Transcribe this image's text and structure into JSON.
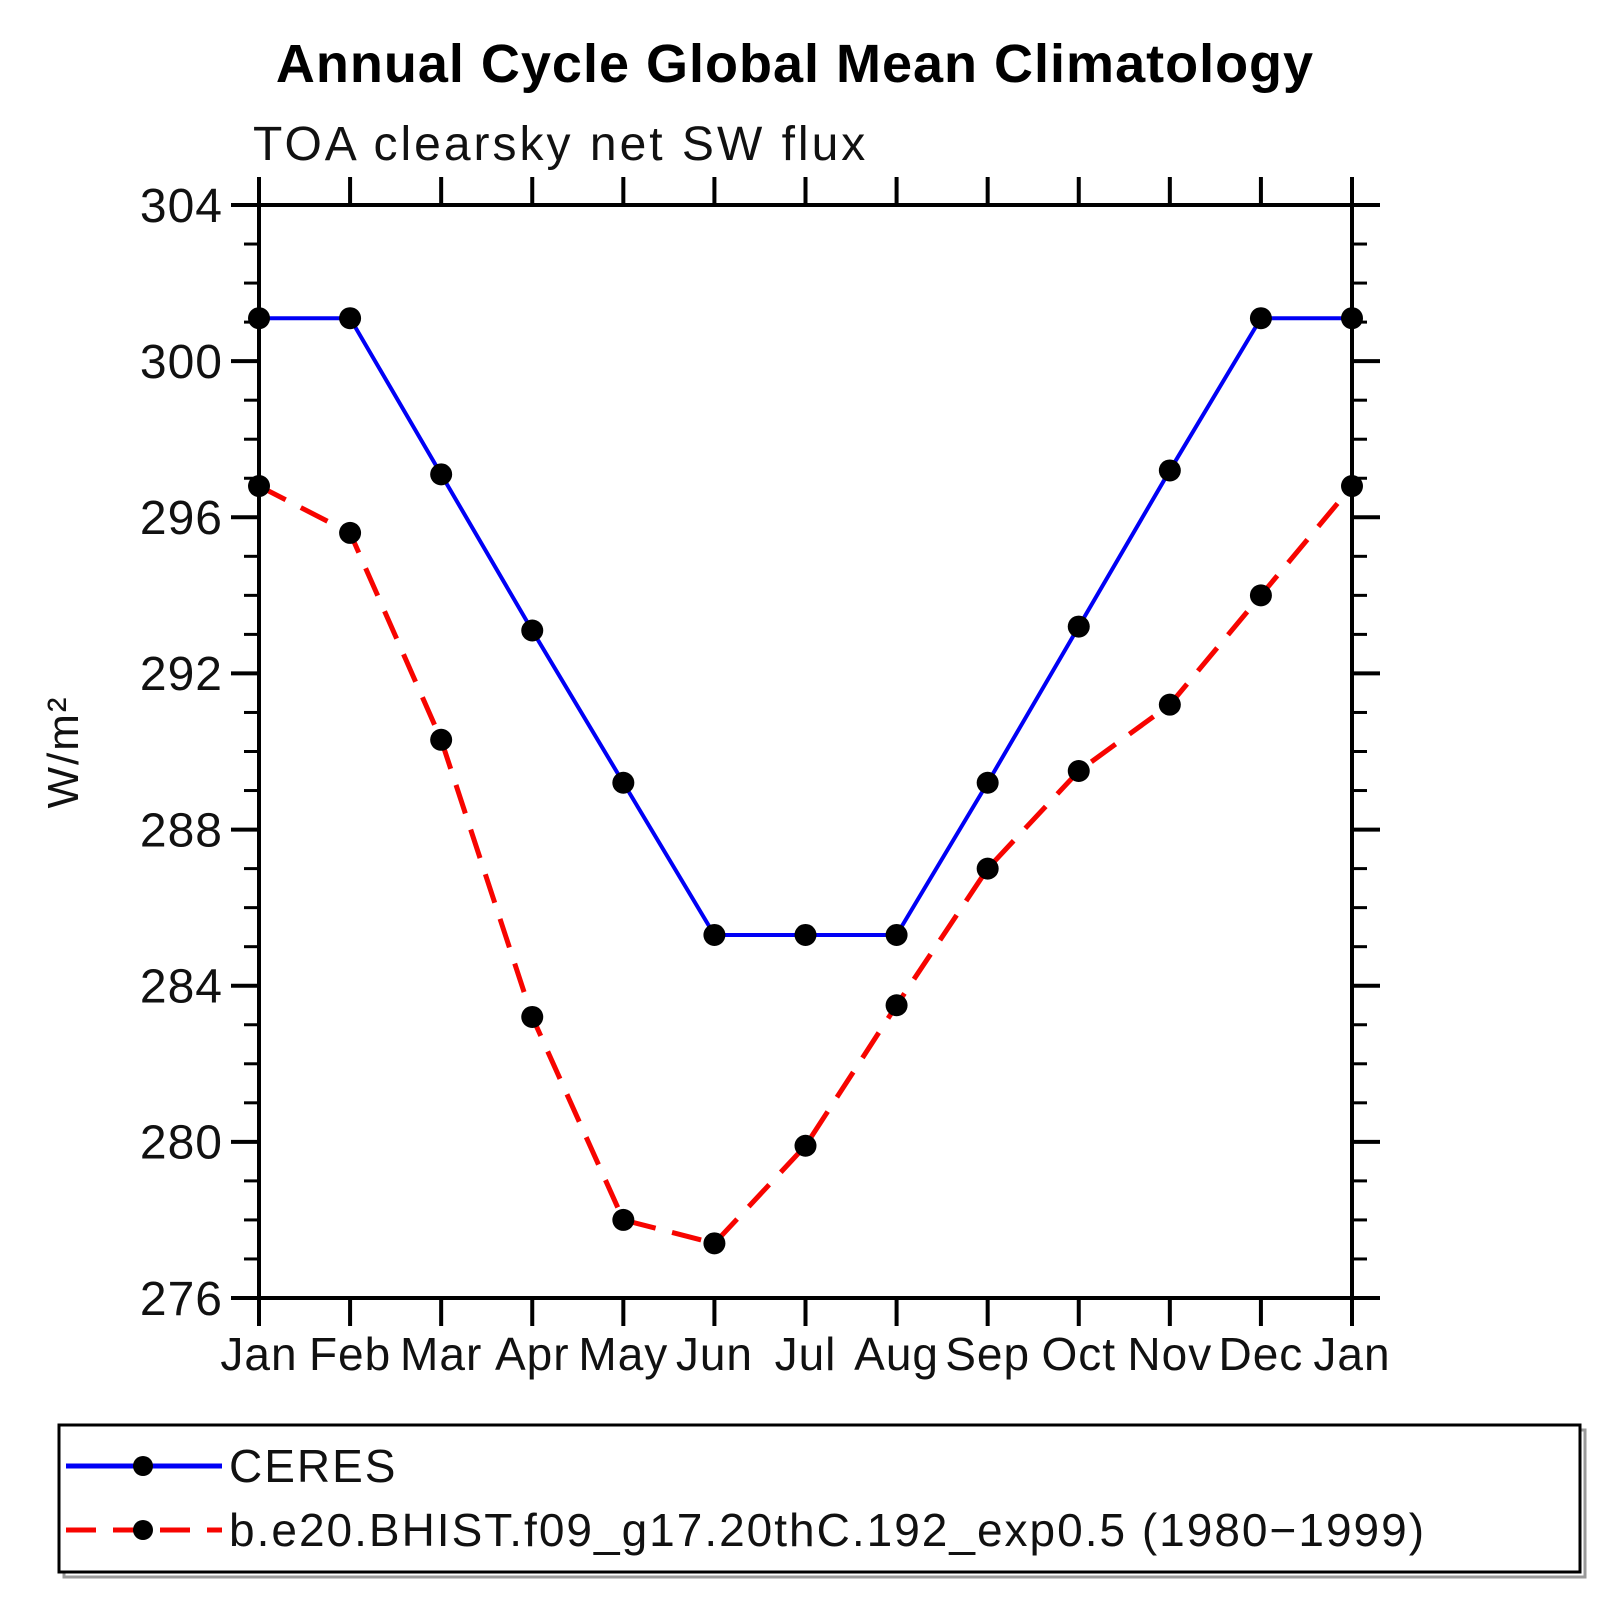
{
  "chart_data": {
    "type": "line",
    "title": "Annual Cycle Global Mean Climatology",
    "subtitle": "TOA clearsky net SW flux",
    "ylabel": "W/m²",
    "xlabel": "",
    "x_categories": [
      "Jan",
      "Feb",
      "Mar",
      "Apr",
      "May",
      "Jun",
      "Jul",
      "Aug",
      "Sep",
      "Oct",
      "Nov",
      "Dec",
      "Jan"
    ],
    "ylim": [
      276,
      304
    ],
    "y_major_step": 4,
    "y_minor_step": 1,
    "grid": false,
    "legend_position": "bottom",
    "axis_color": "#000000",
    "background_color": "#ffffff",
    "series": [
      {
        "name": "CERES",
        "color": "#0000f5",
        "line_style": "solid",
        "line_width": 4,
        "marker": "circle",
        "marker_color": "#000000",
        "values": [
          301.1,
          301.1,
          297.1,
          293.1,
          289.2,
          285.3,
          285.3,
          285.3,
          289.2,
          293.2,
          297.2,
          301.1,
          301.1
        ]
      },
      {
        "name": "b.e20.BHIST.f09_g17.20thC.192_exp0.5 (1980−1999)",
        "color": "#f70400",
        "line_style": "dashed",
        "line_width": 5,
        "marker": "circle",
        "marker_color": "#000000",
        "values": [
          296.8,
          295.6,
          290.3,
          283.2,
          278.0,
          277.4,
          279.9,
          283.5,
          287.0,
          289.5,
          291.2,
          294.0,
          296.8
        ]
      }
    ]
  }
}
